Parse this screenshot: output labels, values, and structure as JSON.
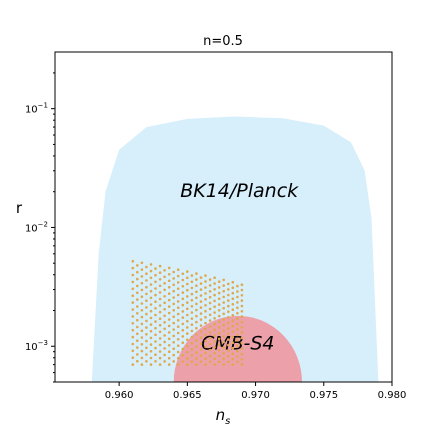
{
  "chart_data": {
    "type": "scatter",
    "title": "n=0.5",
    "xlabel": "n_s",
    "ylabel": "r",
    "xlim": [
      0.9553,
      0.98
    ],
    "ylim": [
      0.0005,
      0.3
    ],
    "yscale": "log",
    "grid": false,
    "x_ticks": [
      0.96,
      0.965,
      0.97,
      0.975,
      0.98
    ],
    "x_tick_labels": [
      "0.960",
      "0.965",
      "0.970",
      "0.975",
      "0.980"
    ],
    "y_ticks": [
      0.001,
      0.01,
      0.1
    ],
    "y_tick_labels": [
      "10",
      "10",
      "10"
    ],
    "y_tick_exponents": [
      "-3",
      "-2",
      "-1"
    ],
    "regions": [
      {
        "name": "BK14/Planck",
        "label": "BK14/Planck",
        "color": "#d6effb",
        "boundary_ns": [
          0.958,
          0.9585,
          0.959,
          0.96,
          0.962,
          0.965,
          0.9685,
          0.972,
          0.975,
          0.977,
          0.978,
          0.9785,
          0.979
        ],
        "boundary_r": [
          0.0005,
          0.006,
          0.02,
          0.045,
          0.07,
          0.082,
          0.086,
          0.083,
          0.072,
          0.052,
          0.03,
          0.012,
          0.0005
        ],
        "label_at": {
          "ns": 0.9688,
          "r": 0.018
        }
      },
      {
        "name": "CMB-S4",
        "label": "CMB-S4",
        "color": "#f08c96",
        "center_ns": 0.9687,
        "half_width_ns": 0.0047,
        "r_max": 0.0018,
        "label_at": {
          "ns": 0.9687,
          "r": 0.00094
        }
      }
    ],
    "scatter": {
      "color": "#e0a84c",
      "columns_ns_start": 0.961,
      "columns_ns_end": 0.969,
      "columns_count": 25,
      "r_top_start": 0.0052,
      "r_top_end": 0.0033,
      "r_bottom": 0.0007,
      "rows_count": 16
    }
  }
}
